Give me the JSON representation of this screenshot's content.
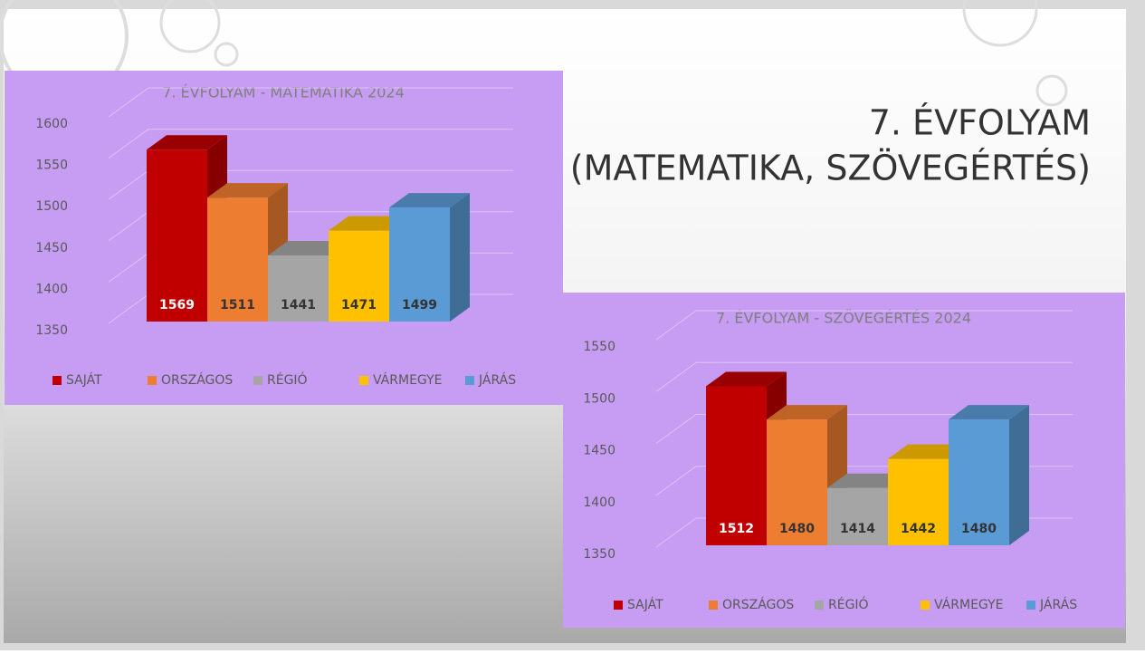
{
  "slide": {
    "title": [
      "7. ÉVFOLYAM",
      "(MATEMATIKA, SZÖVEGÉRTÉS)"
    ]
  },
  "chart_data": [
    {
      "type": "bar",
      "title": "7. ÉVFOLYAM - MATEMATIKA 2024",
      "categories": [
        null
      ],
      "series": [
        {
          "name": "SAJÁT",
          "color": "#c00000",
          "values": [
            1569
          ]
        },
        {
          "name": "ORSZÁGOS",
          "color": "#ed7d31",
          "values": [
            1511
          ]
        },
        {
          "name": "RÉGIÓ",
          "color": "#a5a5a5",
          "values": [
            1441
          ]
        },
        {
          "name": "VÁRMEGYE",
          "color": "#ffc000",
          "values": [
            1471
          ]
        },
        {
          "name": "JÁRÁS",
          "color": "#5b9bd5",
          "values": [
            1499
          ]
        }
      ],
      "ylim": [
        1350,
        1600
      ],
      "yticks": [
        1350,
        1400,
        1450,
        1500,
        1550,
        1600
      ],
      "grid": true,
      "legend": "bottom"
    },
    {
      "type": "bar",
      "title": "7. ÉVFOLYAM - SZÖVEGÉRTÉS 2024",
      "categories": [
        null
      ],
      "series": [
        {
          "name": "SAJÁT",
          "color": "#c00000",
          "values": [
            1512
          ]
        },
        {
          "name": "ORSZÁGOS",
          "color": "#ed7d31",
          "values": [
            1480
          ]
        },
        {
          "name": "RÉGIÓ",
          "color": "#a5a5a5",
          "values": [
            1414
          ]
        },
        {
          "name": "VÁRMEGYE",
          "color": "#ffc000",
          "values": [
            1442
          ]
        },
        {
          "name": "JÁRÁS",
          "color": "#5b9bd5",
          "values": [
            1480
          ]
        }
      ],
      "ylim": [
        1350,
        1550
      ],
      "yticks": [
        1350,
        1400,
        1450,
        1500,
        1550
      ],
      "grid": true,
      "legend": "bottom"
    }
  ]
}
